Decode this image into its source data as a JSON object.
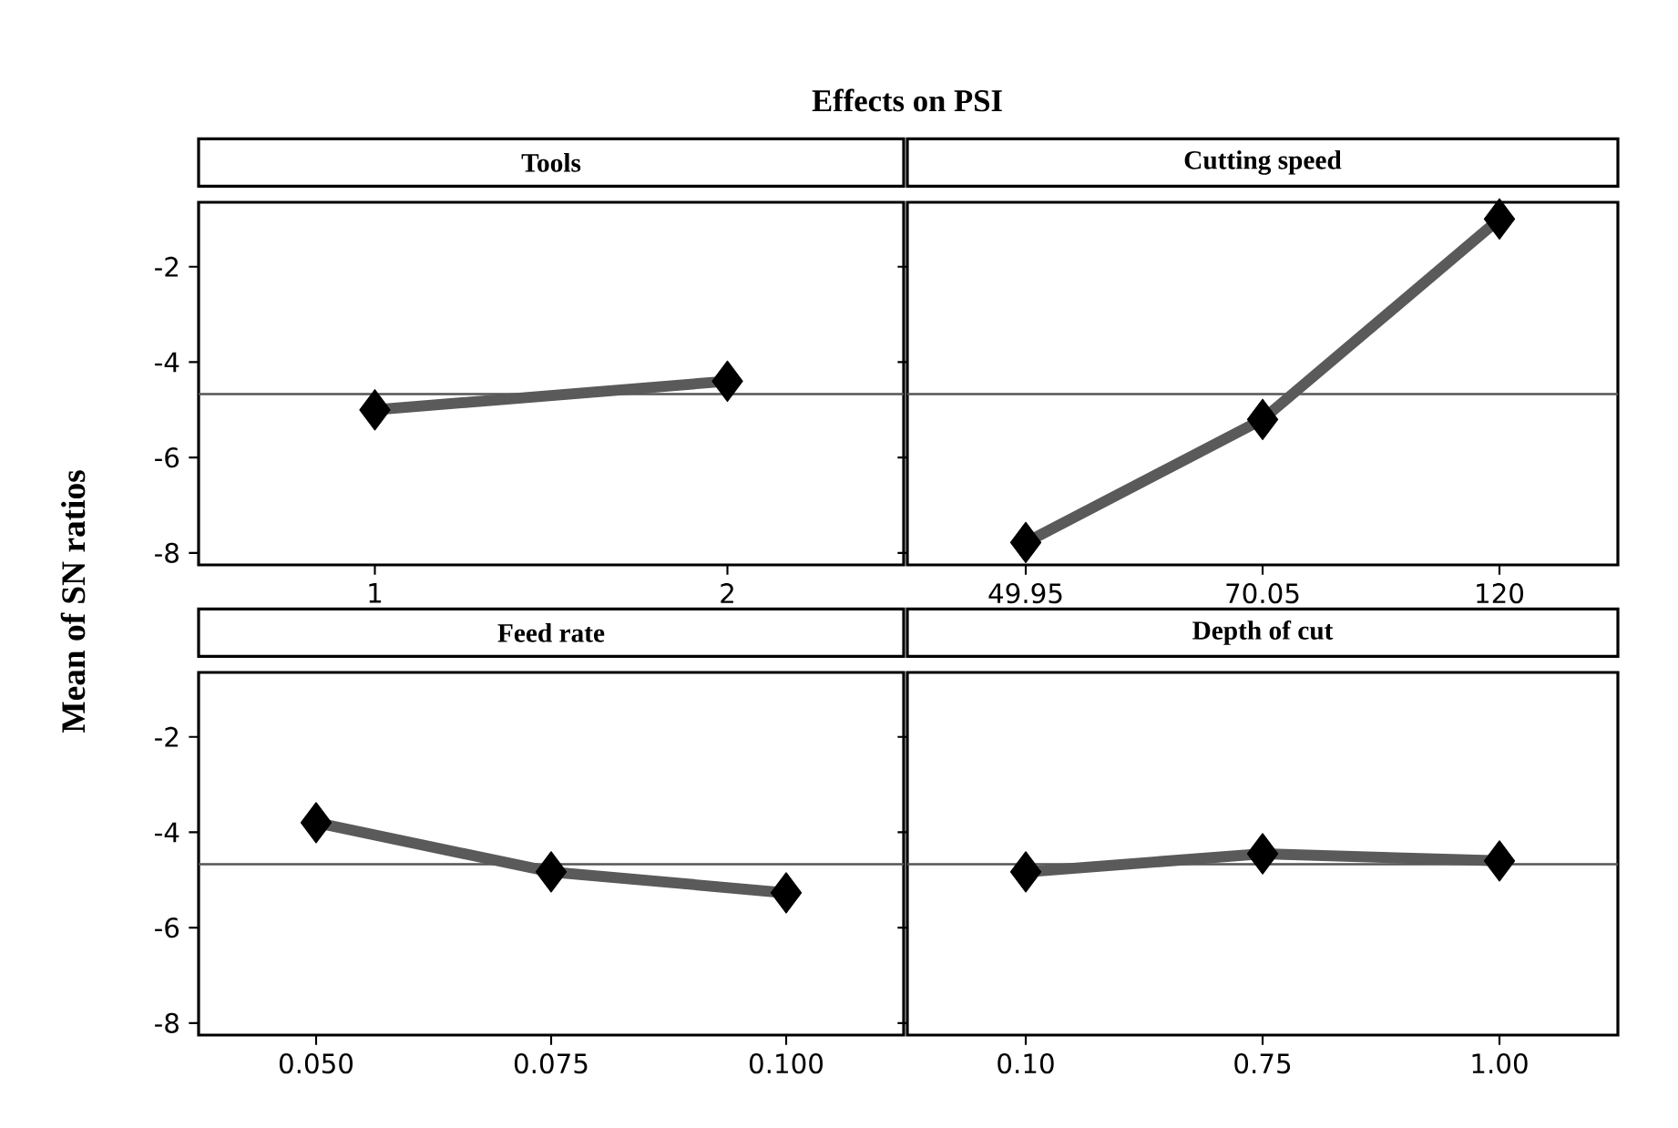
{
  "chart_data": [
    {
      "type": "line",
      "title": "Tools",
      "annotations": [
        "Effects on  PSI"
      ],
      "ylabel": "Mean of SN ratios",
      "categories": [
        "1",
        "2"
      ],
      "values": [
        -5.0,
        -4.4
      ],
      "color": "#5a5a5a",
      "marker": "diamond",
      "ylim": [
        -8.25,
        -0.65
      ],
      "yticks": [
        -2,
        -4,
        -6,
        -8
      ],
      "ref_lines": [
        {
          "axis": "y",
          "value": -4.67,
          "color": "#555555"
        }
      ]
    },
    {
      "type": "line",
      "title": "Cutting speed",
      "categories": [
        "49.95",
        "70.05",
        "120"
      ],
      "values": [
        -7.78,
        -5.2,
        -1.0
      ],
      "color": "#5a5a5a",
      "marker": "diamond",
      "ylim": [
        -8.25,
        -0.65
      ],
      "yticks": [
        -2,
        -4,
        -6,
        -8
      ],
      "tick_labels": "x",
      "ref_lines": [
        {
          "axis": "y",
          "value": -4.67,
          "color": "#555555"
        }
      ]
    },
    {
      "type": "line",
      "title": "Feed rate",
      "categories": [
        "0.050",
        "0.075",
        "0.100"
      ],
      "values": [
        -3.8,
        -4.83,
        -5.27
      ],
      "color": "#5a5a5a",
      "marker": "diamond",
      "ylim": [
        -8.25,
        -0.65
      ],
      "yticks": [
        -2,
        -4,
        -6,
        -8
      ],
      "ref_lines": [
        {
          "axis": "y",
          "value": -4.67,
          "color": "#555555"
        }
      ]
    },
    {
      "type": "line",
      "title": "Depth of cut",
      "categories": [
        "0.10",
        "0.75",
        "1.00"
      ],
      "values": [
        -4.83,
        -4.45,
        -4.6
      ],
      "color": "#5a5a5a",
      "marker": "diamond",
      "ylim": [
        -8.25,
        -0.65
      ],
      "yticks": [
        -2,
        -4,
        -6,
        -8
      ],
      "tick_labels": "x",
      "ref_lines": [
        {
          "axis": "y",
          "value": -4.67,
          "color": "#555555"
        }
      ]
    }
  ]
}
